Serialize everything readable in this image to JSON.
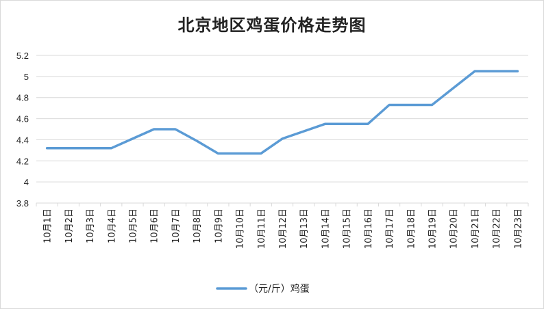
{
  "chart_data": {
    "type": "line",
    "title": "北京地区鸡蛋价格走势图",
    "xlabel": "",
    "ylabel": "",
    "categories": [
      "10月1日",
      "10月2日",
      "10月3日",
      "10月4日",
      "10月5日",
      "10月6日",
      "10月7日",
      "10月8日",
      "10月9日",
      "10月10日",
      "10月11日",
      "10月12日",
      "10月13日",
      "10月14日",
      "10月15日",
      "10月16日",
      "10月17日",
      "10月18日",
      "10月19日",
      "10月20日",
      "10月21日",
      "10月22日",
      "10月23日"
    ],
    "series": [
      {
        "name": "（元/斤）鸡蛋",
        "color": "#5b9bd5",
        "values": [
          4.32,
          4.32,
          4.32,
          4.32,
          4.41,
          4.5,
          4.5,
          4.39,
          4.27,
          4.27,
          4.27,
          4.41,
          4.48,
          4.55,
          4.55,
          4.55,
          4.73,
          4.73,
          4.73,
          4.89,
          5.05,
          5.05,
          5.05
        ]
      }
    ],
    "ylim": [
      3.8,
      5.2
    ],
    "yticks": [
      "3.8",
      "4",
      "4.2",
      "4.4",
      "4.6",
      "4.8",
      "5",
      "5.2"
    ],
    "grid": true,
    "legend_position": "bottom"
  }
}
